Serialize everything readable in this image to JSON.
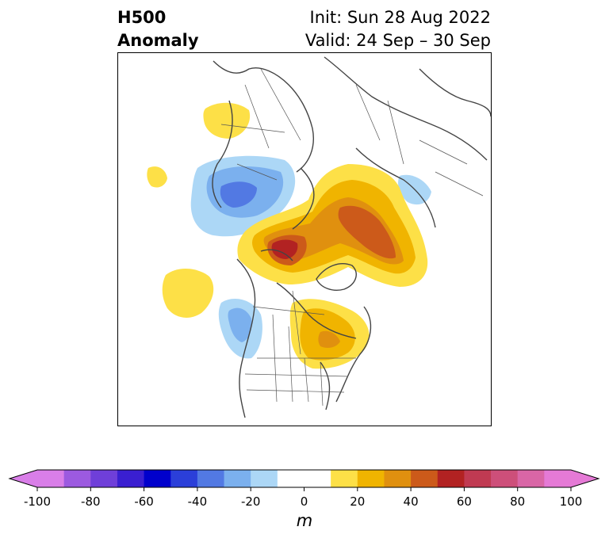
{
  "title": {
    "line1": "H500",
    "line2": "Anomaly",
    "init": "Init: Sun 28 Aug 2022",
    "valid": "Valid: 24 Sep – 30 Sep"
  },
  "colorbar": {
    "unit_label": "m",
    "ticks": [
      "-100",
      "-80",
      "-60",
      "-40",
      "-20",
      "0",
      "20",
      "40",
      "60",
      "80",
      "100"
    ],
    "levels": [
      -100,
      -90,
      -80,
      -70,
      -60,
      -50,
      -40,
      -30,
      -20,
      -10,
      10,
      20,
      30,
      40,
      50,
      60,
      70,
      80,
      90,
      100
    ],
    "colors": [
      "#d97ee8",
      "#9c5ae0",
      "#6f3fd9",
      "#3a1fd1",
      "#0000cc",
      "#2b3fd9",
      "#5279e3",
      "#7bb0ee",
      "#acd7f6",
      "#ffffff",
      "#fde047",
      "#f0b400",
      "#e0900f",
      "#cc5a1a",
      "#b22222",
      "#c03a52",
      "#cd4f7a",
      "#d966a6",
      "#e57ad6"
    ],
    "under_color": "#d97ee8",
    "over_color": "#e57ad6"
  },
  "map": {
    "projection": "north-polar-stereographic",
    "region": "Northern Hemisphere, centered on North Pole with North America at bottom",
    "anomaly_features": [
      {
        "name": "central-arctic-ridge",
        "sign": "positive",
        "peak_m": 60
      },
      {
        "name": "siberia-ridge",
        "sign": "positive",
        "peak_m": 50
      },
      {
        "name": "eastern-north-america-ridge",
        "sign": "positive",
        "peak_m": 30
      },
      {
        "name": "europe-trough",
        "sign": "negative",
        "peak_m": -40
      },
      {
        "name": "west-coast-trough",
        "sign": "negative",
        "peak_m": -30
      },
      {
        "name": "north-pacific-ridge",
        "sign": "positive",
        "peak_m": 10
      }
    ]
  }
}
